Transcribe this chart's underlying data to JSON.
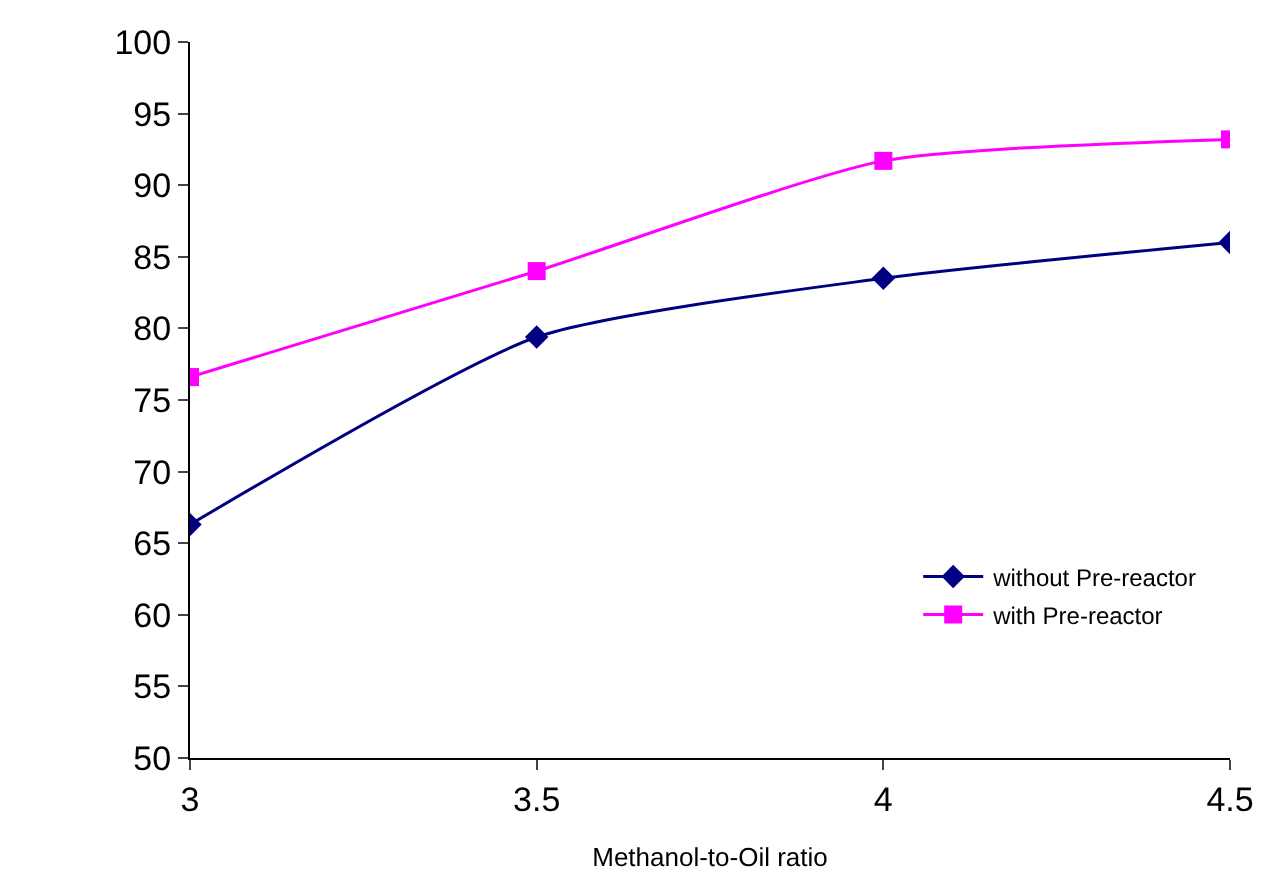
{
  "chart_data": {
    "type": "line",
    "xlabel": "Methanol-to-Oil ratio",
    "x": [
      3,
      3.5,
      4,
      4.5
    ],
    "series": [
      {
        "name": "without Pre-reactor",
        "color": "#000080",
        "marker": "diamond",
        "values": [
          66.3,
          79.4,
          83.5,
          86
        ]
      },
      {
        "name": "with Pre-reactor",
        "color": "#ff00ff",
        "marker": "square",
        "values": [
          76.6,
          84,
          91.7,
          93.2
        ]
      }
    ],
    "xlim": [
      3,
      4.5
    ],
    "xticks": [
      3,
      3.5,
      4,
      4.5
    ],
    "ylim": [
      50,
      100
    ],
    "yticks": [
      50,
      55,
      60,
      65,
      70,
      75,
      80,
      85,
      90,
      95,
      100
    ],
    "legend": "bottom right",
    "line_style": "solid"
  }
}
